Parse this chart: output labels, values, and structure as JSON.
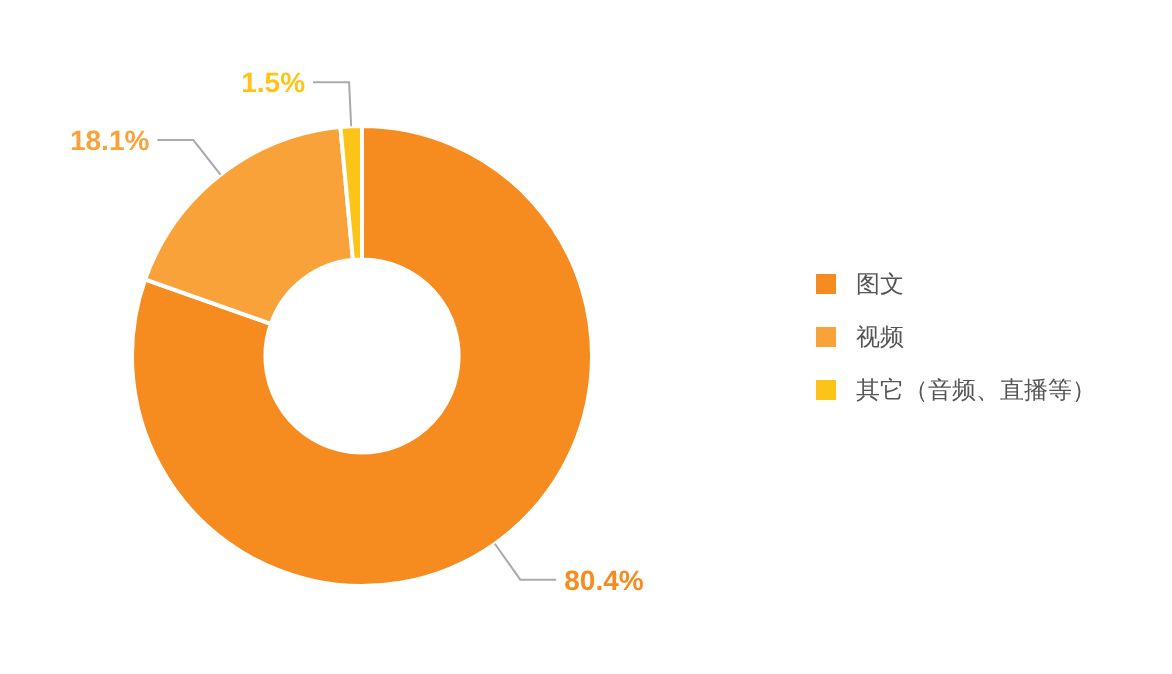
{
  "chart_data": {
    "type": "donut",
    "categories": [
      "图文",
      "视频",
      "其它（音频、直播等）"
    ],
    "values": [
      80.4,
      18.1,
      1.5
    ],
    "colors": [
      "#f68b1f",
      "#f9a23a",
      "#fcc419"
    ],
    "value_labels": [
      "80.4%",
      "18.1%",
      "1.5%"
    ],
    "legend": "right"
  }
}
